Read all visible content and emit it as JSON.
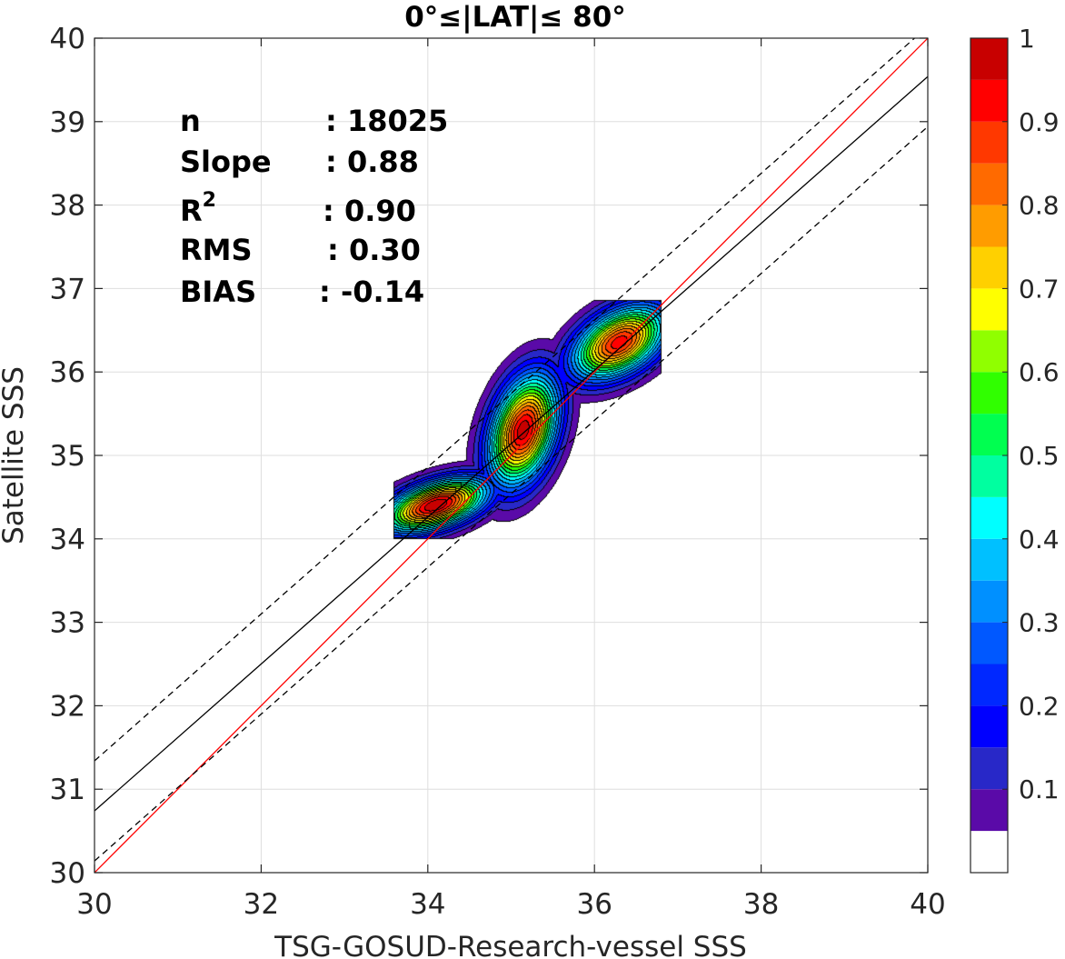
{
  "chart_data": {
    "type": "heatmap",
    "subtype": "density-contour-scatter",
    "title": "0°≤|LAT|≤ 80°",
    "xlabel": "TSG-GOSUD-Research-vessel SSS",
    "ylabel": "Satellite SSS",
    "xlim": [
      30,
      40
    ],
    "ylim": [
      30,
      40
    ],
    "xticks": [
      "30",
      "32",
      "34",
      "36",
      "38",
      "40"
    ],
    "yticks": [
      "30",
      "31",
      "32",
      "33",
      "34",
      "35",
      "36",
      "37",
      "38",
      "39",
      "40"
    ],
    "grid": true,
    "stats": [
      {
        "label": "n",
        "value": ": 18025"
      },
      {
        "label": "Slope",
        "value": ": 0.88"
      },
      {
        "label": "R",
        "sup": "2",
        "value": ": 0.90"
      },
      {
        "label": "RMS",
        "value": ": 0.30"
      },
      {
        "label": "BIAS",
        "value": ": -0.14"
      }
    ],
    "lines": [
      {
        "name": "one-to-one",
        "color": "#ff0000",
        "style": "solid",
        "slope": 1.0,
        "intercept": 0.0
      },
      {
        "name": "fit",
        "color": "#000000",
        "style": "solid",
        "slope": 0.88,
        "intercept": 4.34
      },
      {
        "name": "fit-upper",
        "color": "#000000",
        "style": "dashed",
        "slope": 0.88,
        "intercept": 4.94
      },
      {
        "name": "fit-lower",
        "color": "#000000",
        "style": "dashed",
        "slope": 0.88,
        "intercept": 3.74
      }
    ],
    "density_peaks": [
      {
        "x": 34.1,
        "y": 34.4,
        "sx": 0.42,
        "sy": 0.22,
        "rho": 0.5,
        "amp": 1.0
      },
      {
        "x": 35.15,
        "y": 35.3,
        "sx": 0.28,
        "sy": 0.45,
        "rho": 0.35,
        "amp": 0.98
      },
      {
        "x": 36.3,
        "y": 36.35,
        "sx": 0.38,
        "sy": 0.3,
        "rho": 0.45,
        "amp": 0.93
      }
    ],
    "density_extent": {
      "x": [
        33.6,
        36.8
      ],
      "y": [
        34.0,
        36.85
      ]
    },
    "colorbar": {
      "min": 0.0,
      "max": 1.0,
      "ticks": [
        "0.1",
        "0.2",
        "0.3",
        "0.4",
        "0.5",
        "0.6",
        "0.7",
        "0.8",
        "0.9",
        "1"
      ],
      "tick_values": [
        0.1,
        0.2,
        0.3,
        0.4,
        0.5,
        0.6,
        0.7,
        0.8,
        0.9,
        1.0
      ],
      "levels": [
        0.05,
        0.1,
        0.15,
        0.2,
        0.25,
        0.3,
        0.35,
        0.4,
        0.45,
        0.5,
        0.55,
        0.6,
        0.65,
        0.7,
        0.75,
        0.8,
        0.85,
        0.9,
        0.95,
        1.0
      ],
      "colors": [
        "#ffffff",
        "#5a0aa8",
        "#2828c8",
        "#0000ff",
        "#0028ff",
        "#0058ff",
        "#0090ff",
        "#00c0ff",
        "#00ffff",
        "#00ffa0",
        "#00ff50",
        "#30ff00",
        "#90ff00",
        "#ffff00",
        "#ffd000",
        "#ff9c00",
        "#ff6a00",
        "#ff3800",
        "#ff0000",
        "#c80000",
        "#820000"
      ]
    }
  }
}
